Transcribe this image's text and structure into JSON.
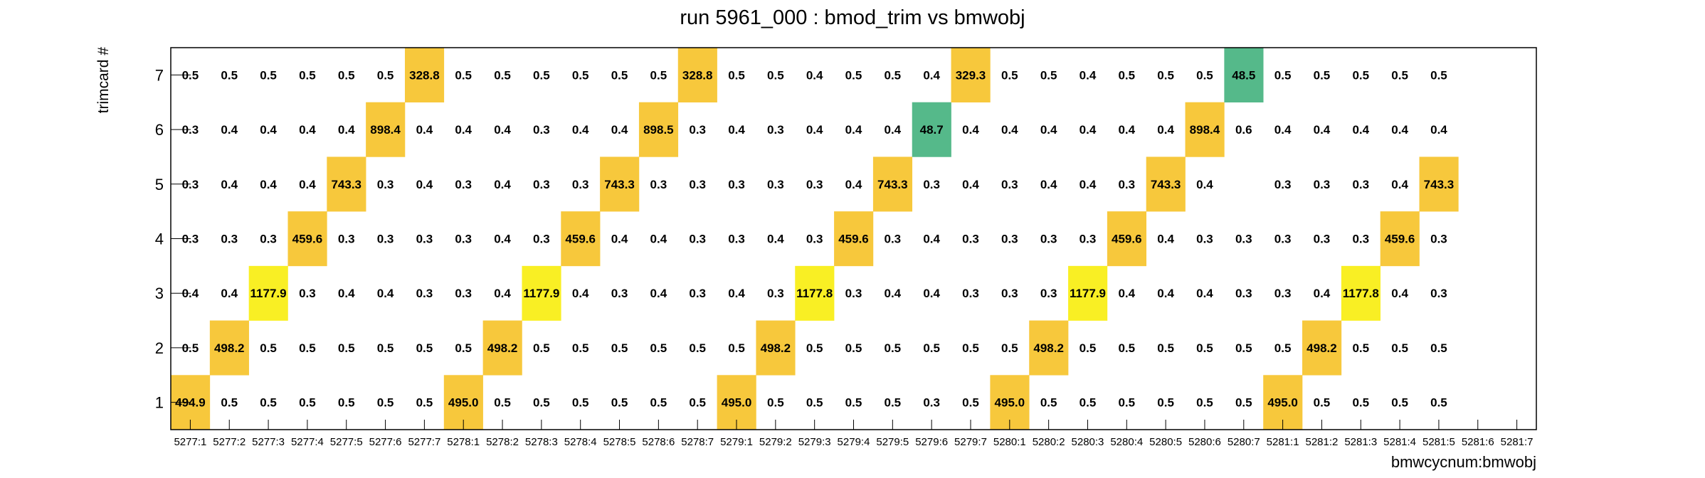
{
  "chart_data": {
    "type": "heatmap",
    "title": "run 5961_000 : bmod_trim vs bmwobj",
    "xlabel": "bmwcycnum:bmwobj",
    "ylabel": "trimcard #",
    "categories": [
      "5277:1",
      "5277:2",
      "5277:3",
      "5277:4",
      "5277:5",
      "5277:6",
      "5277:7",
      "5278:1",
      "5278:2",
      "5278:3",
      "5278:4",
      "5278:5",
      "5278:6",
      "5278:7",
      "5279:1",
      "5279:2",
      "5279:3",
      "5279:4",
      "5279:5",
      "5279:6",
      "5279:7",
      "5280:1",
      "5280:2",
      "5280:3",
      "5280:4",
      "5280:5",
      "5280:6",
      "5280:7",
      "5281:1",
      "5281:2",
      "5281:3",
      "5281:4",
      "5281:5",
      "5281:6",
      "5281:7"
    ],
    "y_categories": [
      "1",
      "2",
      "3",
      "4",
      "5",
      "6",
      "7"
    ],
    "rows": [
      {
        "y": "1",
        "values": [
          494.9,
          0.5,
          0.5,
          0.5,
          0.5,
          0.5,
          0.5,
          495.0,
          0.5,
          0.5,
          0.5,
          0.5,
          0.5,
          0.5,
          495.0,
          0.5,
          0.5,
          0.5,
          0.5,
          0.3,
          0.5,
          495.0,
          0.5,
          0.5,
          0.5,
          0.5,
          0.5,
          0.5,
          495.0,
          0.5,
          0.5,
          0.5,
          0.5,
          null,
          null
        ]
      },
      {
        "y": "2",
        "values": [
          0.5,
          498.2,
          0.5,
          0.5,
          0.5,
          0.5,
          0.5,
          0.5,
          498.2,
          0.5,
          0.5,
          0.5,
          0.5,
          0.5,
          0.5,
          498.2,
          0.5,
          0.5,
          0.5,
          0.5,
          0.5,
          0.5,
          498.2,
          0.5,
          0.5,
          0.5,
          0.5,
          0.5,
          0.5,
          498.2,
          0.5,
          0.5,
          0.5,
          null,
          null
        ]
      },
      {
        "y": "3",
        "values": [
          0.4,
          0.4,
          1177.9,
          0.3,
          0.4,
          0.4,
          0.3,
          0.3,
          0.4,
          1177.9,
          0.4,
          0.3,
          0.4,
          0.3,
          0.4,
          0.3,
          1177.8,
          0.3,
          0.4,
          0.4,
          0.3,
          0.3,
          0.3,
          1177.9,
          0.4,
          0.4,
          0.4,
          0.3,
          0.3,
          0.4,
          1177.8,
          0.4,
          0.3,
          null,
          null
        ]
      },
      {
        "y": "4",
        "values": [
          0.3,
          0.3,
          0.3,
          459.6,
          0.3,
          0.3,
          0.3,
          0.3,
          0.4,
          0.3,
          459.6,
          0.4,
          0.4,
          0.3,
          0.3,
          0.4,
          0.3,
          459.6,
          0.3,
          0.4,
          0.3,
          0.3,
          0.3,
          0.3,
          459.6,
          0.4,
          0.3,
          0.3,
          0.3,
          0.3,
          0.3,
          459.6,
          0.3,
          null,
          null
        ]
      },
      {
        "y": "5",
        "values": [
          0.3,
          0.4,
          0.4,
          0.4,
          743.3,
          0.3,
          0.4,
          0.3,
          0.4,
          0.3,
          0.3,
          743.3,
          0.3,
          0.3,
          0.3,
          0.3,
          0.3,
          0.4,
          743.3,
          0.3,
          0.4,
          0.3,
          0.4,
          0.4,
          0.3,
          743.3,
          0.4,
          null,
          0.3,
          0.3,
          0.3,
          0.4,
          743.3,
          null,
          null
        ]
      },
      {
        "y": "6",
        "values": [
          0.3,
          0.4,
          0.4,
          0.4,
          0.4,
          898.4,
          0.4,
          0.4,
          0.4,
          0.3,
          0.4,
          0.4,
          898.5,
          0.3,
          0.4,
          0.3,
          0.4,
          0.4,
          0.4,
          48.7,
          0.4,
          0.4,
          0.4,
          0.4,
          0.4,
          0.4,
          898.4,
          0.6,
          0.4,
          0.4,
          0.4,
          0.4,
          0.4,
          null,
          null
        ]
      },
      {
        "y": "7",
        "values": [
          0.5,
          0.5,
          0.5,
          0.5,
          0.5,
          0.5,
          328.8,
          0.5,
          0.5,
          0.5,
          0.5,
          0.5,
          0.5,
          328.8,
          0.5,
          0.5,
          0.4,
          0.5,
          0.5,
          0.4,
          329.3,
          0.5,
          0.5,
          0.4,
          0.5,
          0.5,
          0.5,
          48.5,
          0.5,
          0.5,
          0.5,
          0.5,
          0.5,
          null,
          null
        ]
      }
    ],
    "colors": {
      "low": "#55b98a",
      "mid": "#f7c83c",
      "high": "#f9ef24",
      "frame": "#000000",
      "text": "#000000"
    }
  }
}
